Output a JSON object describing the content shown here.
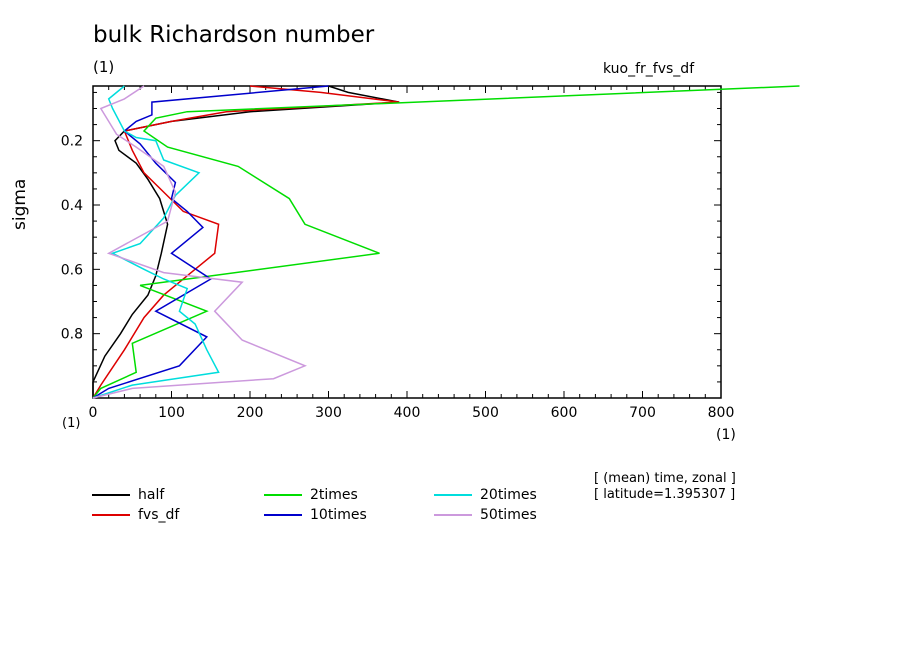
{
  "chart_data": {
    "type": "line",
    "title": "bulk Richardson number",
    "unit_top_left": "(1)",
    "experiment_name": "kuo_fr_fvs_df",
    "x_unit": "(1)",
    "y_unit": "(1)",
    "ylabel": "sigma",
    "xlim": [
      0,
      800
    ],
    "ylim": [
      0.03,
      1.0
    ],
    "y_inverted": true,
    "x_ticks": [
      "0",
      "100",
      "200",
      "300",
      "400",
      "500",
      "600",
      "700",
      "800"
    ],
    "y_ticks": [
      "0.2",
      "0.4",
      "0.6",
      "0.8"
    ],
    "info_lines": [
      "[ (mean) time, zonal ]",
      "[ latitude=1.395307 ]"
    ],
    "legend_placement": "bottom",
    "grid": false,
    "series": [
      {
        "name": "half",
        "color": "#000000",
        "points": [
          [
            300,
            0.03
          ],
          [
            325,
            0.05
          ],
          [
            390,
            0.08
          ],
          [
            200,
            0.11
          ],
          [
            100,
            0.14
          ],
          [
            40,
            0.17
          ],
          [
            28,
            0.2
          ],
          [
            33,
            0.23
          ],
          [
            55,
            0.27
          ],
          [
            70,
            0.32
          ],
          [
            85,
            0.38
          ],
          [
            95,
            0.46
          ],
          [
            87,
            0.55
          ],
          [
            80,
            0.62
          ],
          [
            70,
            0.68
          ],
          [
            50,
            0.74
          ],
          [
            35,
            0.8
          ],
          [
            15,
            0.87
          ],
          [
            0,
            0.95
          ],
          [
            0,
            1.0
          ]
        ]
      },
      {
        "name": "fvs_df",
        "color": "#dd0000",
        "points": [
          [
            200,
            0.03
          ],
          [
            290,
            0.05
          ],
          [
            390,
            0.08
          ],
          [
            170,
            0.11
          ],
          [
            100,
            0.14
          ],
          [
            40,
            0.17
          ],
          [
            50,
            0.23
          ],
          [
            65,
            0.3
          ],
          [
            90,
            0.36
          ],
          [
            115,
            0.42
          ],
          [
            160,
            0.46
          ],
          [
            155,
            0.55
          ],
          [
            130,
            0.6
          ],
          [
            90,
            0.68
          ],
          [
            65,
            0.75
          ],
          [
            40,
            0.85
          ],
          [
            10,
            0.96
          ],
          [
            0,
            1.0
          ]
        ]
      },
      {
        "name": "2times",
        "color": "#00dd00",
        "points": [
          [
            900,
            0.03
          ],
          [
            120,
            0.11
          ],
          [
            80,
            0.13
          ],
          [
            65,
            0.17
          ],
          [
            95,
            0.22
          ],
          [
            185,
            0.28
          ],
          [
            250,
            0.38
          ],
          [
            270,
            0.46
          ],
          [
            365,
            0.55
          ],
          [
            60,
            0.65
          ],
          [
            145,
            0.73
          ],
          [
            50,
            0.83
          ],
          [
            55,
            0.92
          ],
          [
            10,
            0.97
          ],
          [
            0,
            1.0
          ]
        ]
      },
      {
        "name": "10times",
        "color": "#0000cc",
        "points": [
          [
            300,
            0.03
          ],
          [
            75,
            0.08
          ],
          [
            75,
            0.12
          ],
          [
            55,
            0.14
          ],
          [
            40,
            0.17
          ],
          [
            60,
            0.21
          ],
          [
            80,
            0.27
          ],
          [
            105,
            0.33
          ],
          [
            100,
            0.38
          ],
          [
            120,
            0.42
          ],
          [
            140,
            0.47
          ],
          [
            100,
            0.55
          ],
          [
            150,
            0.63
          ],
          [
            80,
            0.73
          ],
          [
            145,
            0.81
          ],
          [
            110,
            0.9
          ],
          [
            20,
            0.97
          ],
          [
            0,
            1.0
          ]
        ]
      },
      {
        "name": "20times",
        "color": "#00dddd",
        "points": [
          [
            40,
            0.03
          ],
          [
            20,
            0.07
          ],
          [
            25,
            0.1
          ],
          [
            40,
            0.17
          ],
          [
            55,
            0.19
          ],
          [
            80,
            0.2
          ],
          [
            90,
            0.26
          ],
          [
            135,
            0.3
          ],
          [
            105,
            0.37
          ],
          [
            90,
            0.44
          ],
          [
            60,
            0.52
          ],
          [
            25,
            0.55
          ],
          [
            65,
            0.6
          ],
          [
            90,
            0.63
          ],
          [
            120,
            0.66
          ],
          [
            110,
            0.73
          ],
          [
            130,
            0.77
          ],
          [
            145,
            0.85
          ],
          [
            160,
            0.92
          ],
          [
            50,
            0.96
          ],
          [
            0,
            1.0
          ]
        ]
      },
      {
        "name": "50times",
        "color": "#cc99dd",
        "points": [
          [
            65,
            0.03
          ],
          [
            40,
            0.07
          ],
          [
            10,
            0.1
          ],
          [
            20,
            0.14
          ],
          [
            30,
            0.18
          ],
          [
            55,
            0.22
          ],
          [
            90,
            0.28
          ],
          [
            105,
            0.36
          ],
          [
            95,
            0.45
          ],
          [
            20,
            0.55
          ],
          [
            90,
            0.61
          ],
          [
            190,
            0.64
          ],
          [
            155,
            0.73
          ],
          [
            190,
            0.82
          ],
          [
            270,
            0.9
          ],
          [
            230,
            0.94
          ],
          [
            50,
            0.97
          ],
          [
            0,
            1.0
          ]
        ]
      }
    ]
  }
}
